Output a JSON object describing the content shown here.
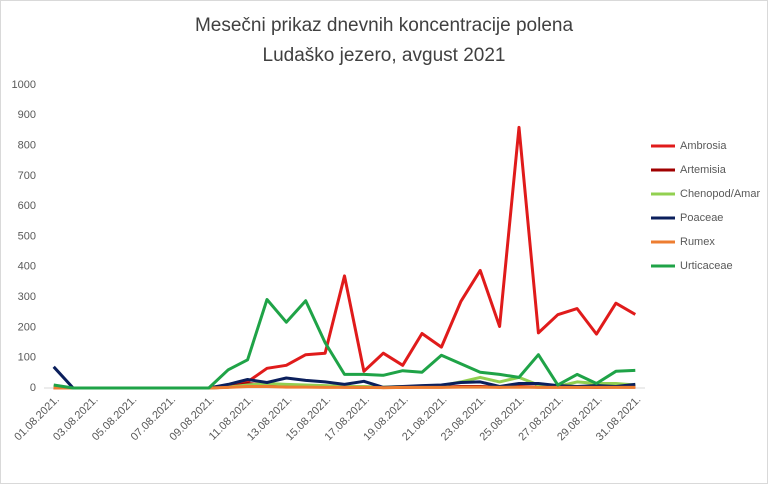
{
  "chart_data": {
    "type": "line",
    "title": [
      "Mesečni prikaz dnevnih koncentracije polena",
      "Ludaško jezero, avgust 2021"
    ],
    "categories": [
      "01.08.2021.",
      null,
      "03.08.2021.",
      null,
      "05.08.2021.",
      null,
      "07.08.2021.",
      null,
      "09.08.2021.",
      null,
      "11.08.2021.",
      null,
      "13.08.2021.",
      null,
      "15.08.2021.",
      null,
      "17.08.2021.",
      null,
      "19.08.2021.",
      null,
      "21.08.2021.",
      null,
      "23.08.2021.",
      null,
      "25.08.2021.",
      null,
      "27.08.2021.",
      null,
      "29.08.2021.",
      null,
      "31.08.2021."
    ],
    "series": [
      {
        "name": "Ambrosia",
        "color": "#e01b1b",
        "values": [
          0,
          0,
          0,
          0,
          0,
          0,
          0,
          0,
          0,
          5,
          20,
          65,
          75,
          110,
          115,
          370,
          55,
          115,
          75,
          180,
          135,
          285,
          388,
          203,
          860,
          182,
          242,
          262,
          178,
          280,
          243
        ]
      },
      {
        "name": "Artemisia",
        "color": "#a00000",
        "values": [
          0,
          0,
          0,
          0,
          0,
          0,
          0,
          0,
          0,
          3,
          15,
          10,
          5,
          5,
          4,
          3,
          2,
          2,
          2,
          3,
          3,
          5,
          5,
          3,
          5,
          3,
          3,
          3,
          2,
          3,
          3
        ]
      },
      {
        "name": "Chenopod/Amar",
        "color": "#92d050",
        "values": [
          5,
          0,
          0,
          0,
          0,
          0,
          0,
          0,
          0,
          3,
          10,
          15,
          12,
          10,
          8,
          5,
          5,
          3,
          5,
          5,
          8,
          20,
          35,
          20,
          35,
          10,
          5,
          20,
          15,
          15,
          10
        ]
      },
      {
        "name": "Poaceae",
        "color": "#0b1f5c",
        "values": [
          70,
          0,
          0,
          0,
          0,
          0,
          0,
          0,
          0,
          12,
          28,
          18,
          33,
          25,
          20,
          12,
          22,
          2,
          5,
          8,
          10,
          18,
          20,
          5,
          15,
          15,
          8,
          5,
          8,
          5,
          12
        ]
      },
      {
        "name": "Rumex",
        "color": "#ed7d31",
        "values": [
          0,
          0,
          0,
          0,
          0,
          0,
          0,
          0,
          0,
          2,
          5,
          5,
          3,
          3,
          2,
          2,
          2,
          1,
          2,
          2,
          2,
          3,
          3,
          2,
          3,
          2,
          2,
          2,
          2,
          2,
          2
        ]
      },
      {
        "name": "Urticaceae",
        "color": "#1fa347",
        "values": [
          10,
          0,
          0,
          0,
          0,
          0,
          0,
          0,
          0,
          60,
          93,
          292,
          217,
          288,
          150,
          45,
          45,
          42,
          57,
          52,
          108,
          80,
          52,
          45,
          35,
          110,
          10,
          45,
          15,
          55,
          58
        ]
      }
    ],
    "ylim": [
      0,
      1000
    ],
    "yticks": [
      0,
      100,
      200,
      300,
      400,
      500,
      600,
      700,
      800,
      900,
      1000
    ],
    "grid": false,
    "legend": "right"
  }
}
